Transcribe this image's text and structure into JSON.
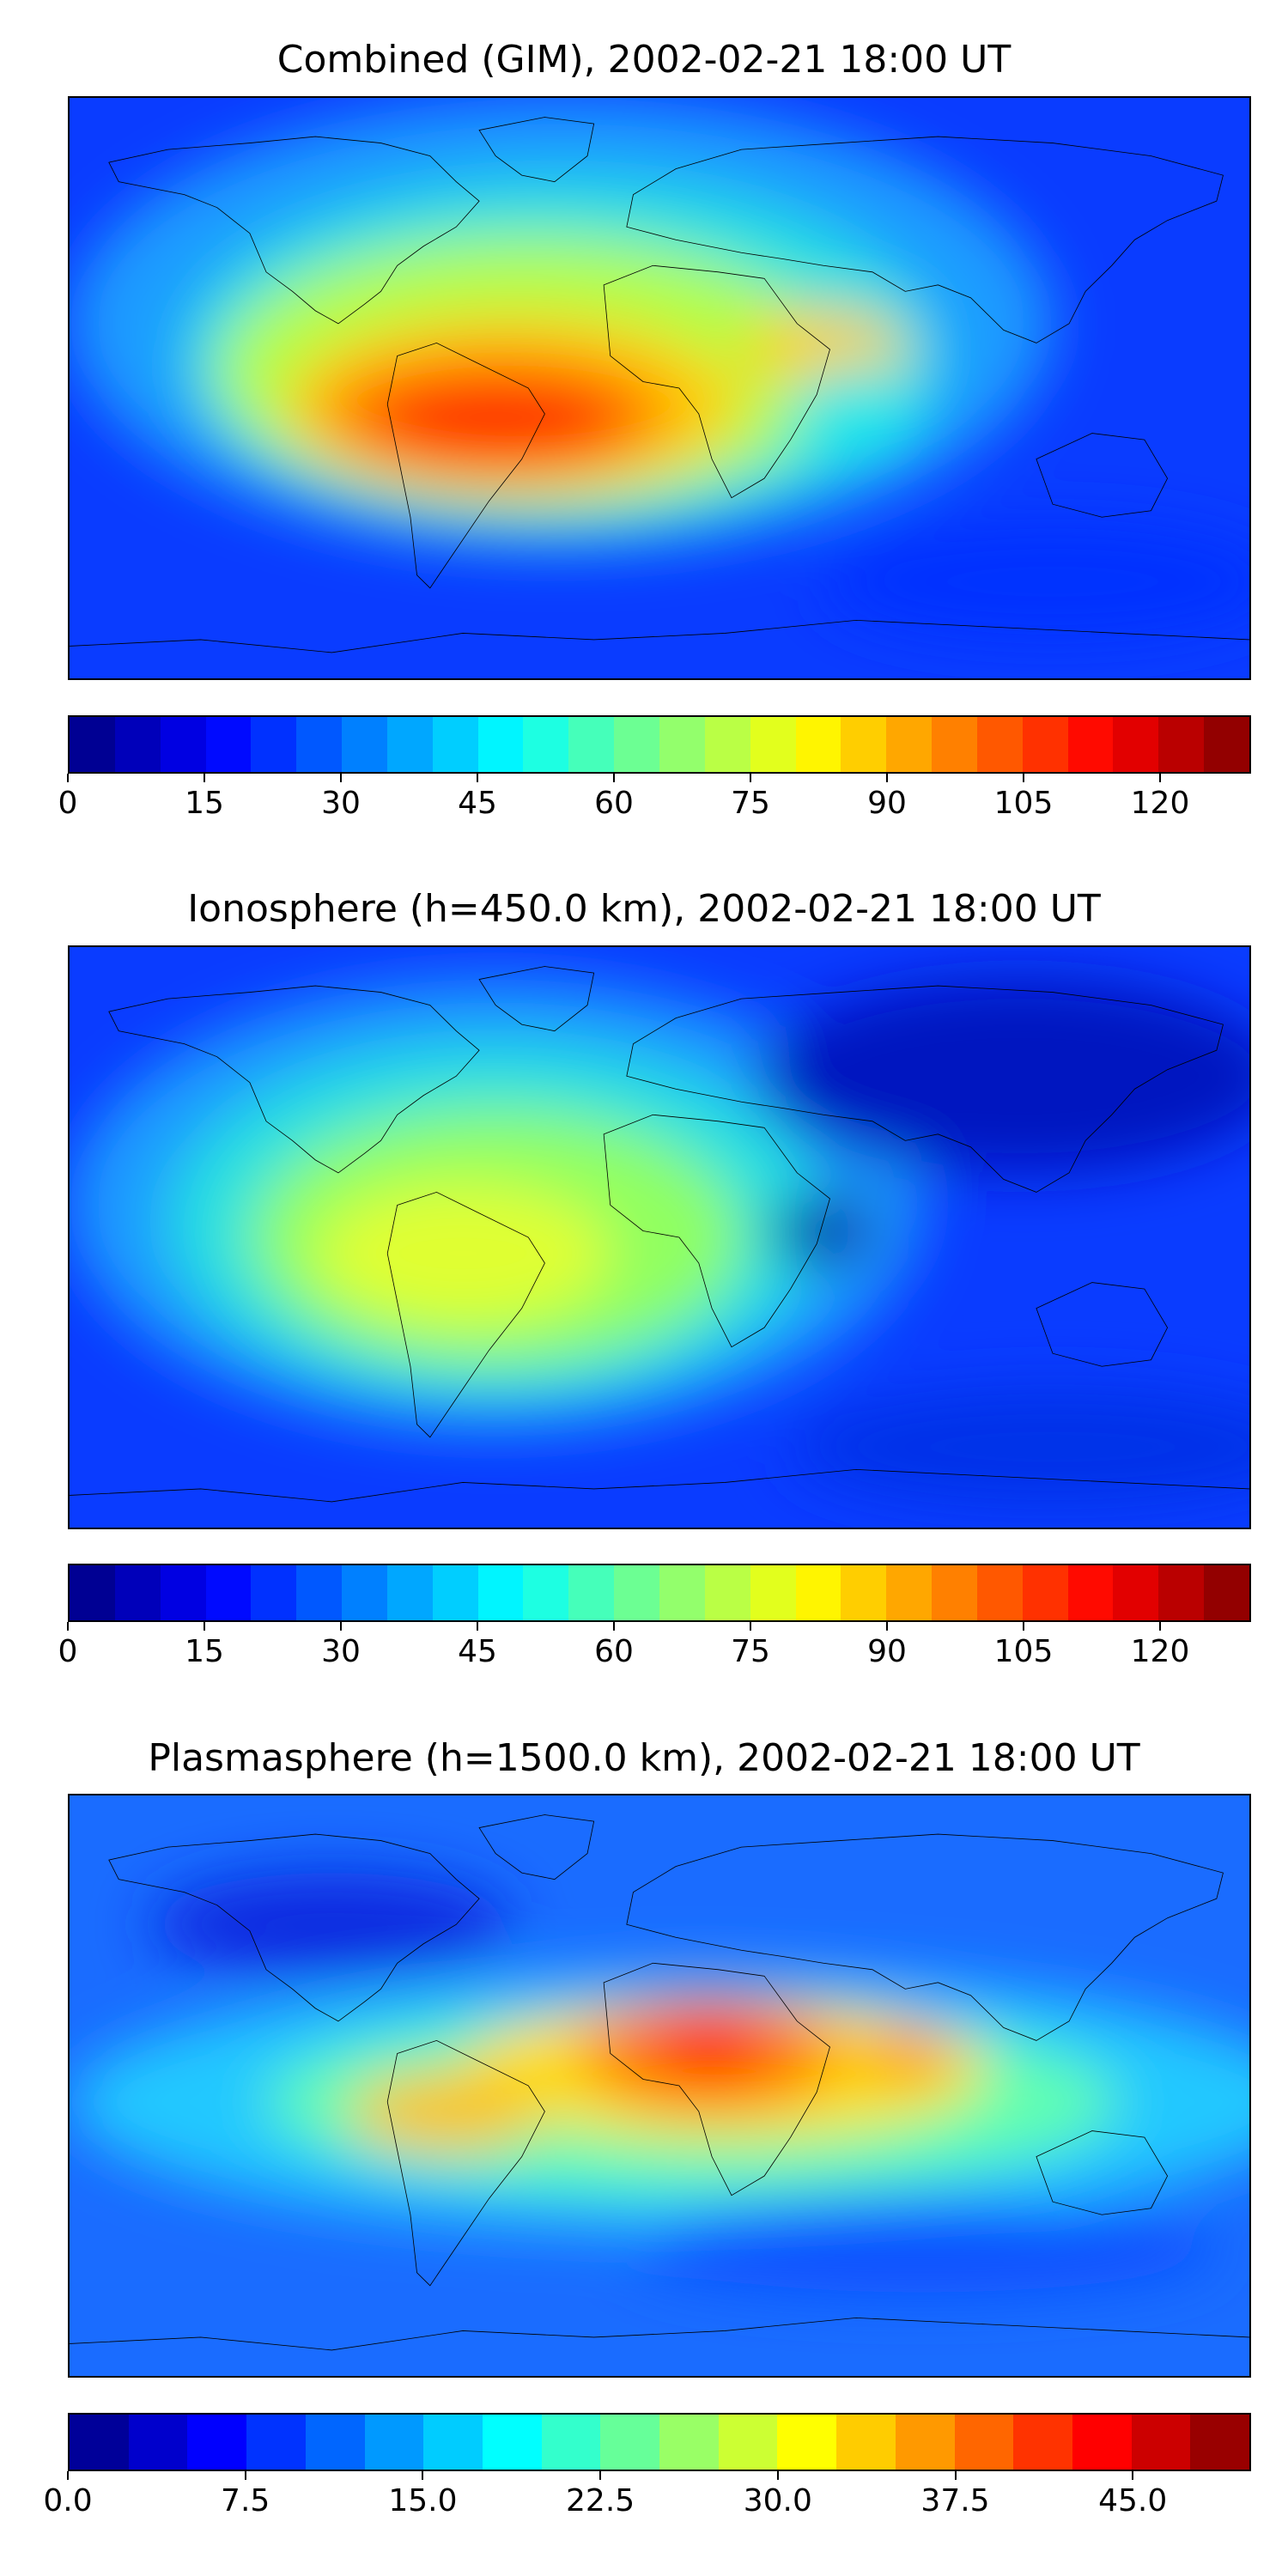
{
  "panels": [
    {
      "title": "Combined (GIM), 2002-02-21 18:00 UT",
      "colorbar": {
        "min": 0,
        "max": 130,
        "levels": 26,
        "ticks": [
          "0",
          "15",
          "30",
          "45",
          "60",
          "75",
          "90",
          "105",
          "120"
        ],
        "tick_values": [
          0,
          15,
          30,
          45,
          60,
          75,
          90,
          105,
          120
        ]
      }
    },
    {
      "title": "Ionosphere  (h=450.0 km), 2002-02-21 18:00 UT",
      "colorbar": {
        "min": 0,
        "max": 130,
        "levels": 26,
        "ticks": [
          "0",
          "15",
          "30",
          "45",
          "60",
          "75",
          "90",
          "105",
          "120"
        ],
        "tick_values": [
          0,
          15,
          30,
          45,
          60,
          75,
          90,
          105,
          120
        ]
      }
    },
    {
      "title": "Plasmasphere (h=1500.0 km), 2002-02-21 18:00 UT",
      "colorbar": {
        "min": 0,
        "max": 50,
        "levels": 20,
        "ticks": [
          "0.0",
          "7.5",
          "15.0",
          "22.5",
          "30.0",
          "37.5",
          "45.0"
        ],
        "tick_values": [
          0,
          7.5,
          15,
          22.5,
          30,
          37.5,
          45
        ]
      }
    }
  ],
  "colormap": "jet",
  "colors": {
    "ocean_low": "#0040ff",
    "high": "#ff2000",
    "coast": "#000000"
  }
}
